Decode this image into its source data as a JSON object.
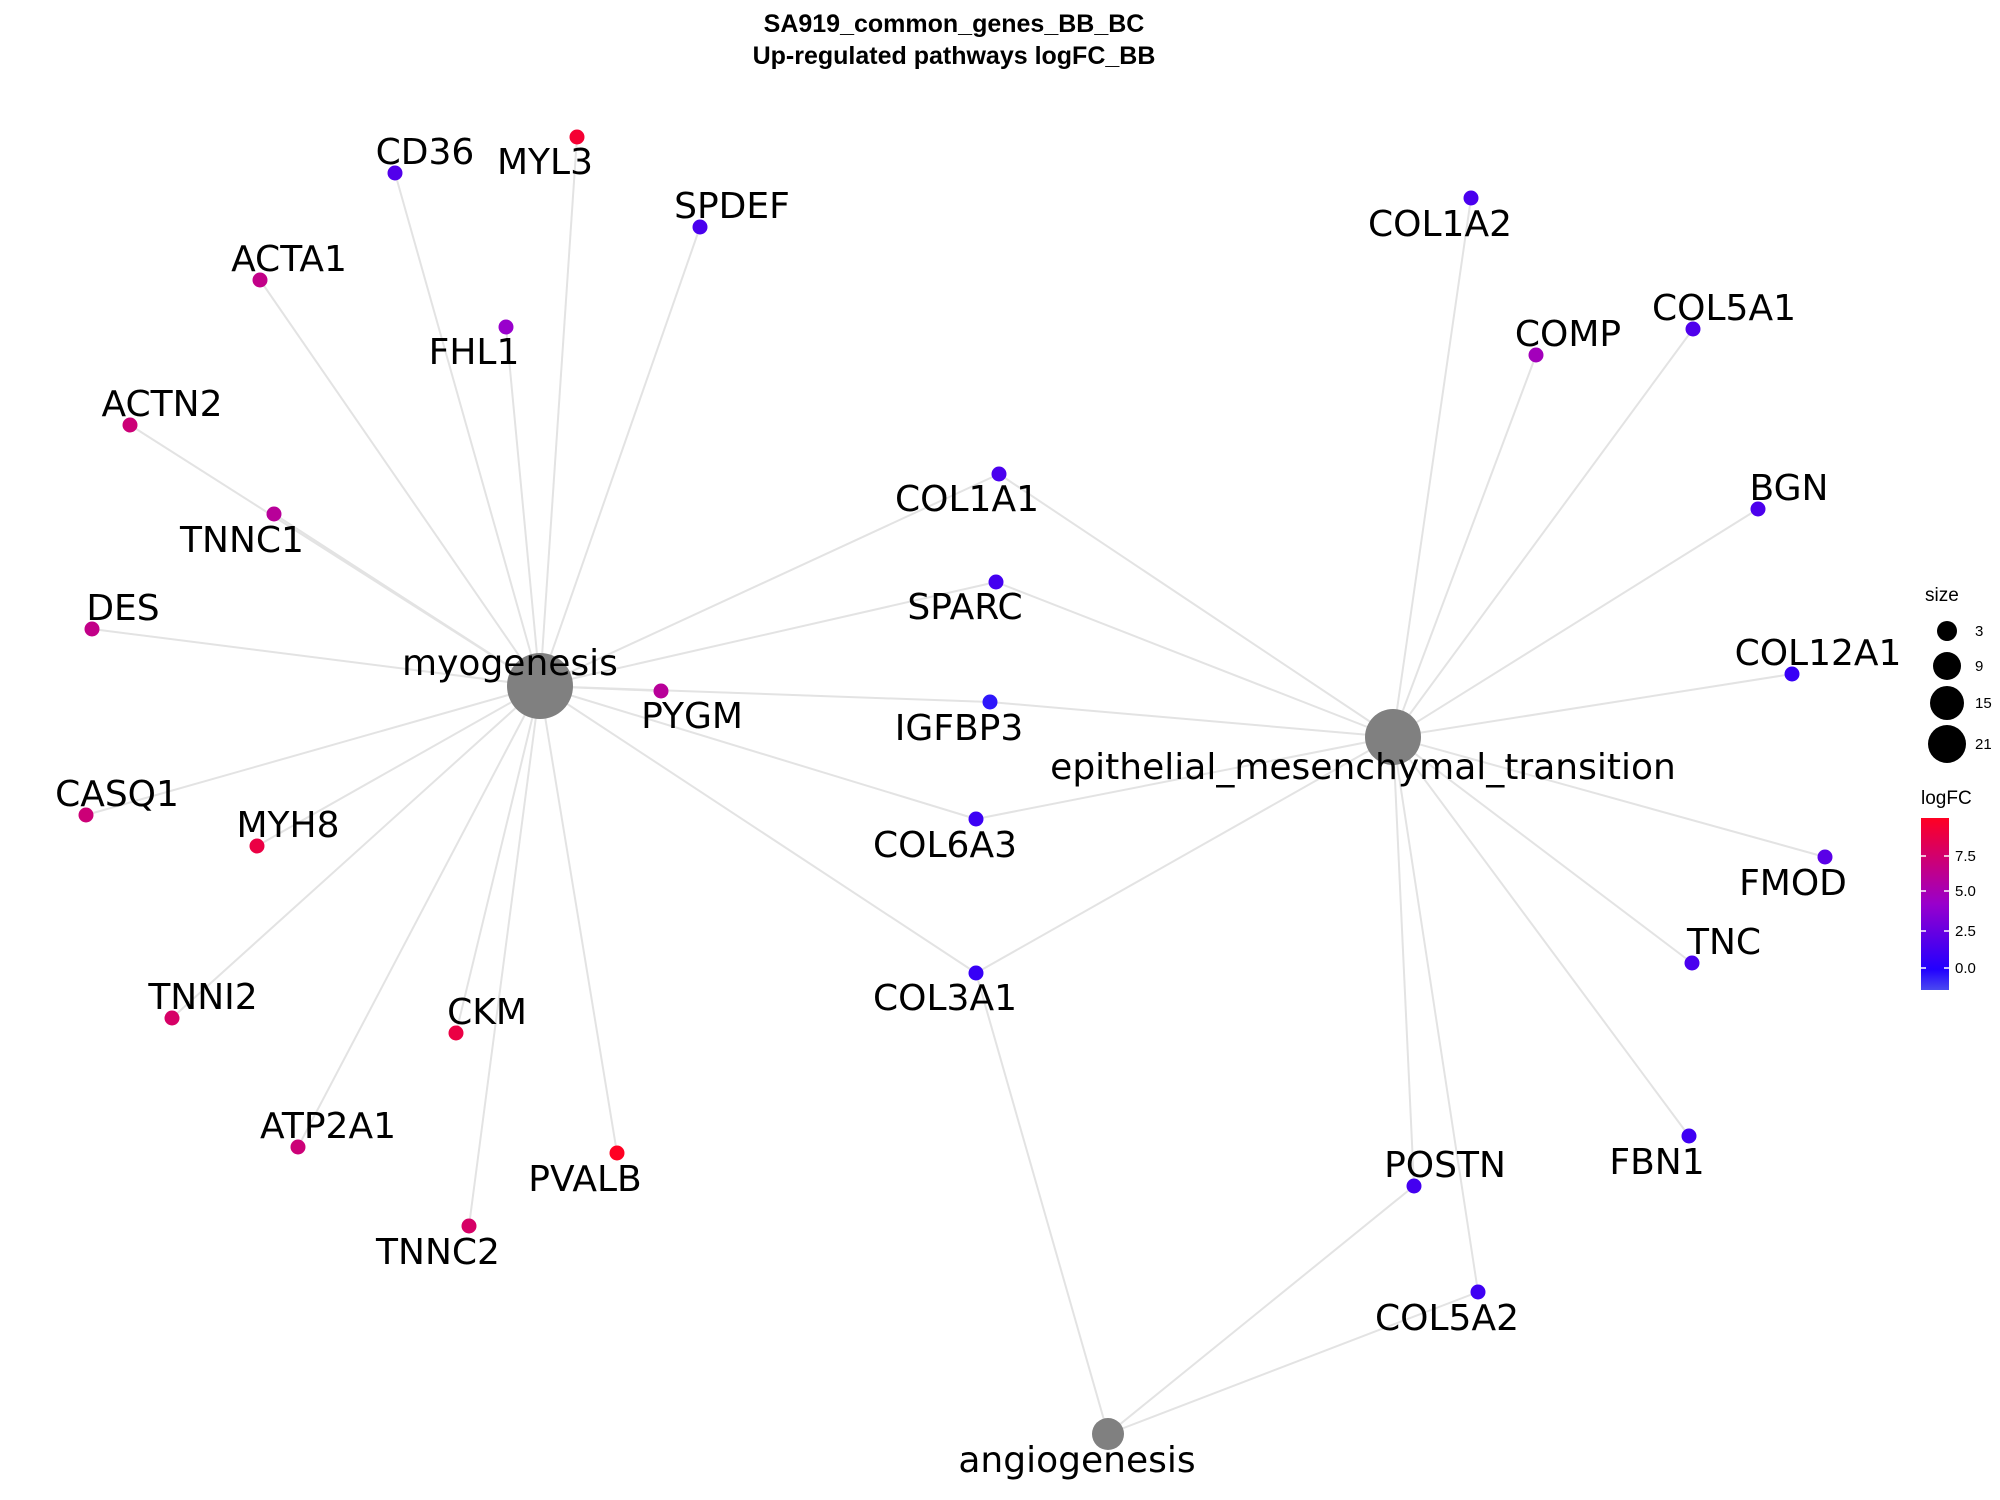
{
  "title_line1": "SA919_common_genes_BB_BC",
  "title_line2": "Up-regulated pathways logFC_BB",
  "legend": {
    "size_title": "size",
    "size_entries": [
      "3",
      "9",
      "15",
      "21"
    ],
    "color_title": "logFC",
    "color_ticks": [
      "7.5",
      "5.0",
      "2.5",
      "0.0"
    ],
    "colors": [
      "#ff0000",
      "#9900cc",
      "#0000ff",
      "#4a4af0"
    ]
  },
  "pathway_node_color": "#808080",
  "pathways": [
    {
      "id": "myogenesis",
      "label": "myogenesis",
      "size": 21
    },
    {
      "id": "emt",
      "label": "epithelial_mesenchymal_transition",
      "size": 15
    },
    {
      "id": "angiogenesis",
      "label": "angiogenesis",
      "size": 3
    }
  ],
  "genes": [
    {
      "label": "CD36",
      "logFC": 2.3,
      "pathways": [
        "myogenesis"
      ]
    },
    {
      "label": "MYL3",
      "logFC": 9.5,
      "pathways": [
        "myogenesis"
      ]
    },
    {
      "label": "SPDEF",
      "logFC": 2.0,
      "pathways": [
        "myogenesis"
      ]
    },
    {
      "label": "ACTA1",
      "logFC": 7.0,
      "pathways": [
        "myogenesis"
      ]
    },
    {
      "label": "FHL1",
      "logFC": 5.0,
      "pathways": [
        "myogenesis"
      ]
    },
    {
      "label": "ACTN2",
      "logFC": 7.5,
      "pathways": [
        "myogenesis"
      ]
    },
    {
      "label": "TNNC1",
      "logFC": 6.5,
      "pathways": [
        "myogenesis"
      ]
    },
    {
      "label": "DES",
      "logFC": 7.0,
      "pathways": [
        "myogenesis"
      ]
    },
    {
      "label": "PYGM",
      "logFC": 6.5,
      "pathways": [
        "myogenesis"
      ]
    },
    {
      "label": "CASQ1",
      "logFC": 7.5,
      "pathways": [
        "myogenesis"
      ]
    },
    {
      "label": "MYH8",
      "logFC": 9.0,
      "pathways": [
        "myogenesis"
      ]
    },
    {
      "label": "TNNI2",
      "logFC": 8.0,
      "pathways": [
        "myogenesis"
      ]
    },
    {
      "label": "CKM",
      "logFC": 9.0,
      "pathways": [
        "myogenesis"
      ]
    },
    {
      "label": "ATP2A1",
      "logFC": 7.5,
      "pathways": [
        "myogenesis"
      ]
    },
    {
      "label": "PVALB",
      "logFC": 10.0,
      "pathways": [
        "myogenesis"
      ]
    },
    {
      "label": "TNNC2",
      "logFC": 8.0,
      "pathways": [
        "myogenesis"
      ]
    },
    {
      "label": "COL1A1",
      "logFC": 2.0,
      "pathways": [
        "myogenesis",
        "emt"
      ]
    },
    {
      "label": "SPARC",
      "logFC": 1.8,
      "pathways": [
        "myogenesis",
        "emt"
      ]
    },
    {
      "label": "IGFBP3",
      "logFC": 0.2,
      "pathways": [
        "myogenesis",
        "emt"
      ]
    },
    {
      "label": "COL6A3",
      "logFC": 1.5,
      "pathways": [
        "myogenesis",
        "emt"
      ]
    },
    {
      "label": "COL3A1",
      "logFC": 1.3,
      "pathways": [
        "myogenesis",
        "emt",
        "angiogenesis"
      ]
    },
    {
      "label": "COL1A2",
      "logFC": 2.0,
      "pathways": [
        "emt"
      ]
    },
    {
      "label": "COMP",
      "logFC": 5.5,
      "pathways": [
        "emt"
      ]
    },
    {
      "label": "COL5A1",
      "logFC": 2.2,
      "pathways": [
        "emt"
      ]
    },
    {
      "label": "BGN",
      "logFC": 2.1,
      "pathways": [
        "emt"
      ]
    },
    {
      "label": "COL12A1",
      "logFC": 1.3,
      "pathways": [
        "emt"
      ]
    },
    {
      "label": "FMOD",
      "logFC": 2.6,
      "pathways": [
        "emt"
      ]
    },
    {
      "label": "TNC",
      "logFC": 2.0,
      "pathways": [
        "emt"
      ]
    },
    {
      "label": "FBN1",
      "logFC": 1.6,
      "pathways": [
        "emt"
      ]
    },
    {
      "label": "POSTN",
      "logFC": 1.8,
      "pathways": [
        "emt",
        "angiogenesis"
      ]
    },
    {
      "label": "COL5A2",
      "logFC": 1.6,
      "pathways": [
        "emt",
        "angiogenesis"
      ]
    }
  ]
}
